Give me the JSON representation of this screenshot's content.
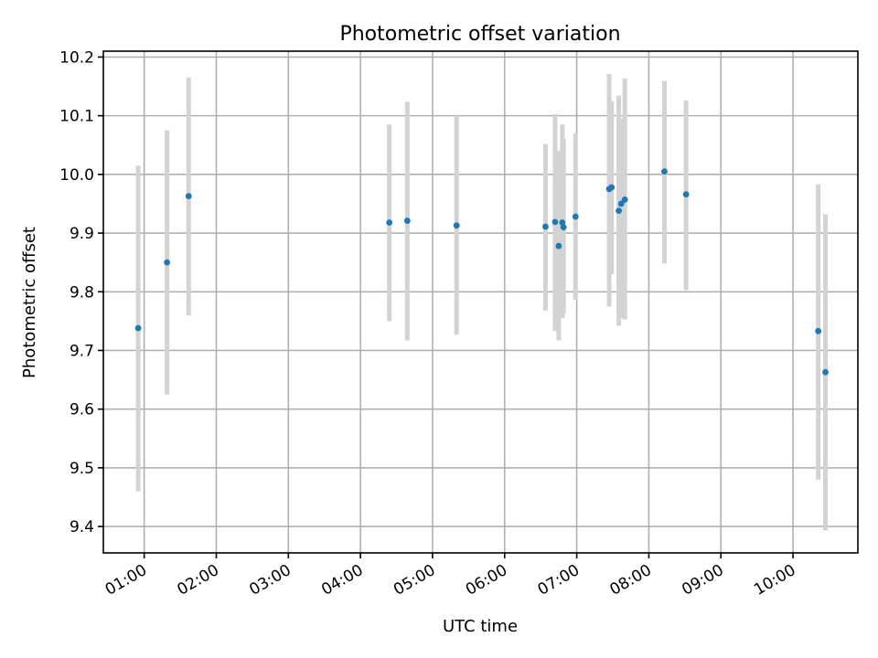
{
  "chart_data": {
    "type": "scatter",
    "title": "Photometric offset variation",
    "xlabel": "UTC time",
    "ylabel": "Photometric offset",
    "x_unit": "hours UTC",
    "xlim": [
      "00:26",
      "10:54"
    ],
    "ylim": [
      9.355,
      10.21
    ],
    "xticks": [
      "01:00",
      "02:00",
      "03:00",
      "04:00",
      "05:00",
      "06:00",
      "07:00",
      "08:00",
      "09:00",
      "10:00"
    ],
    "yticks": [
      "9.4",
      "9.5",
      "9.6",
      "9.7",
      "9.8",
      "9.9",
      "10.0",
      "10.1",
      "10.2"
    ],
    "grid": true,
    "colors": {
      "point": "#1f77b4",
      "errorbar": "#d3d3d3",
      "grid": "#b0b0b0"
    },
    "points": [
      {
        "t": "00:55",
        "y": 9.738,
        "ylow": 9.46,
        "yhigh": 10.015
      },
      {
        "t": "01:19",
        "y": 9.85,
        "ylow": 9.625,
        "yhigh": 10.075
      },
      {
        "t": "01:37",
        "y": 9.963,
        "ylow": 9.76,
        "yhigh": 10.165
      },
      {
        "t": "04:24",
        "y": 9.918,
        "ylow": 9.75,
        "yhigh": 10.085
      },
      {
        "t": "04:39",
        "y": 9.921,
        "ylow": 9.717,
        "yhigh": 10.124
      },
      {
        "t": "05:20",
        "y": 9.913,
        "ylow": 9.727,
        "yhigh": 10.1
      },
      {
        "t": "06:34",
        "y": 9.911,
        "ylow": 9.768,
        "yhigh": 10.052
      },
      {
        "t": "06:42",
        "y": 9.919,
        "ylow": 9.733,
        "yhigh": 10.103
      },
      {
        "t": "06:45",
        "y": 9.878,
        "ylow": 9.717,
        "yhigh": 10.04
      },
      {
        "t": "06:48",
        "y": 9.918,
        "ylow": 9.755,
        "yhigh": 10.085
      },
      {
        "t": "06:49",
        "y": 9.91,
        "ylow": 9.763,
        "yhigh": 10.06
      },
      {
        "t": "06:59",
        "y": 9.928,
        "ylow": 9.786,
        "yhigh": 10.07
      },
      {
        "t": "07:27",
        "y": 9.975,
        "ylow": 9.775,
        "yhigh": 10.171
      },
      {
        "t": "07:29",
        "y": 9.978,
        "ylow": 9.83,
        "yhigh": 10.125
      },
      {
        "t": "07:35",
        "y": 9.938,
        "ylow": 9.742,
        "yhigh": 10.134
      },
      {
        "t": "07:37",
        "y": 9.95,
        "ylow": 9.755,
        "yhigh": 10.095
      },
      {
        "t": "07:40",
        "y": 9.957,
        "ylow": 9.753,
        "yhigh": 10.163
      },
      {
        "t": "08:13",
        "y": 10.005,
        "ylow": 9.848,
        "yhigh": 10.159
      },
      {
        "t": "08:31",
        "y": 9.966,
        "ylow": 9.803,
        "yhigh": 10.126
      },
      {
        "t": "10:21",
        "y": 9.733,
        "ylow": 9.48,
        "yhigh": 9.983
      },
      {
        "t": "10:27",
        "y": 9.663,
        "ylow": 9.393,
        "yhigh": 9.932
      }
    ]
  }
}
